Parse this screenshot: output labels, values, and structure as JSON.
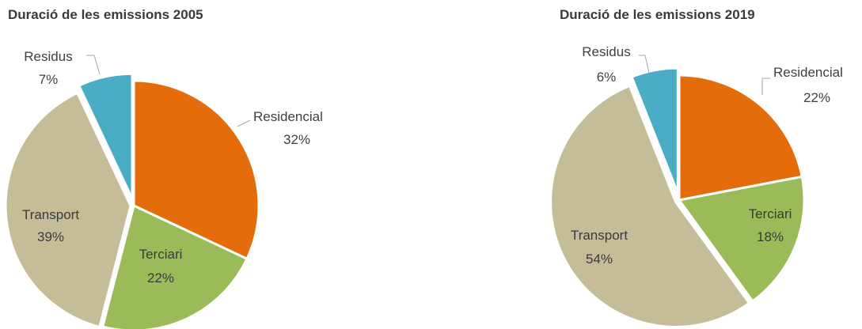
{
  "colors": {
    "Residencial": "#e46c0a",
    "Terciari": "#9bbb59",
    "Transport": "#c4bd97",
    "Residus": "#4bacc6",
    "label_dark": "#404040",
    "label_inside": "#3a3a3a",
    "separator": "#ffffff"
  },
  "chart_data": [
    {
      "type": "pie",
      "title": "Duració de les emissions 2005",
      "slices": [
        {
          "label": "Residencial",
          "value": 32,
          "value_label": "32%"
        },
        {
          "label": "Terciari",
          "value": 22,
          "value_label": "22%"
        },
        {
          "label": "Transport",
          "value": 39,
          "value_label": "39%"
        },
        {
          "label": "Residus",
          "value": 7,
          "value_label": "7%"
        }
      ],
      "legend": "none"
    },
    {
      "type": "pie",
      "title": "Duració de les emissions 2019",
      "slices": [
        {
          "label": "Residencial",
          "value": 22,
          "value_label": "22%"
        },
        {
          "label": "Terciari",
          "value": 18,
          "value_label": "18%"
        },
        {
          "label": "Transport",
          "value": 54,
          "value_label": "54%"
        },
        {
          "label": "Residus",
          "value": 6,
          "value_label": "6%"
        }
      ],
      "legend": "none"
    }
  ]
}
